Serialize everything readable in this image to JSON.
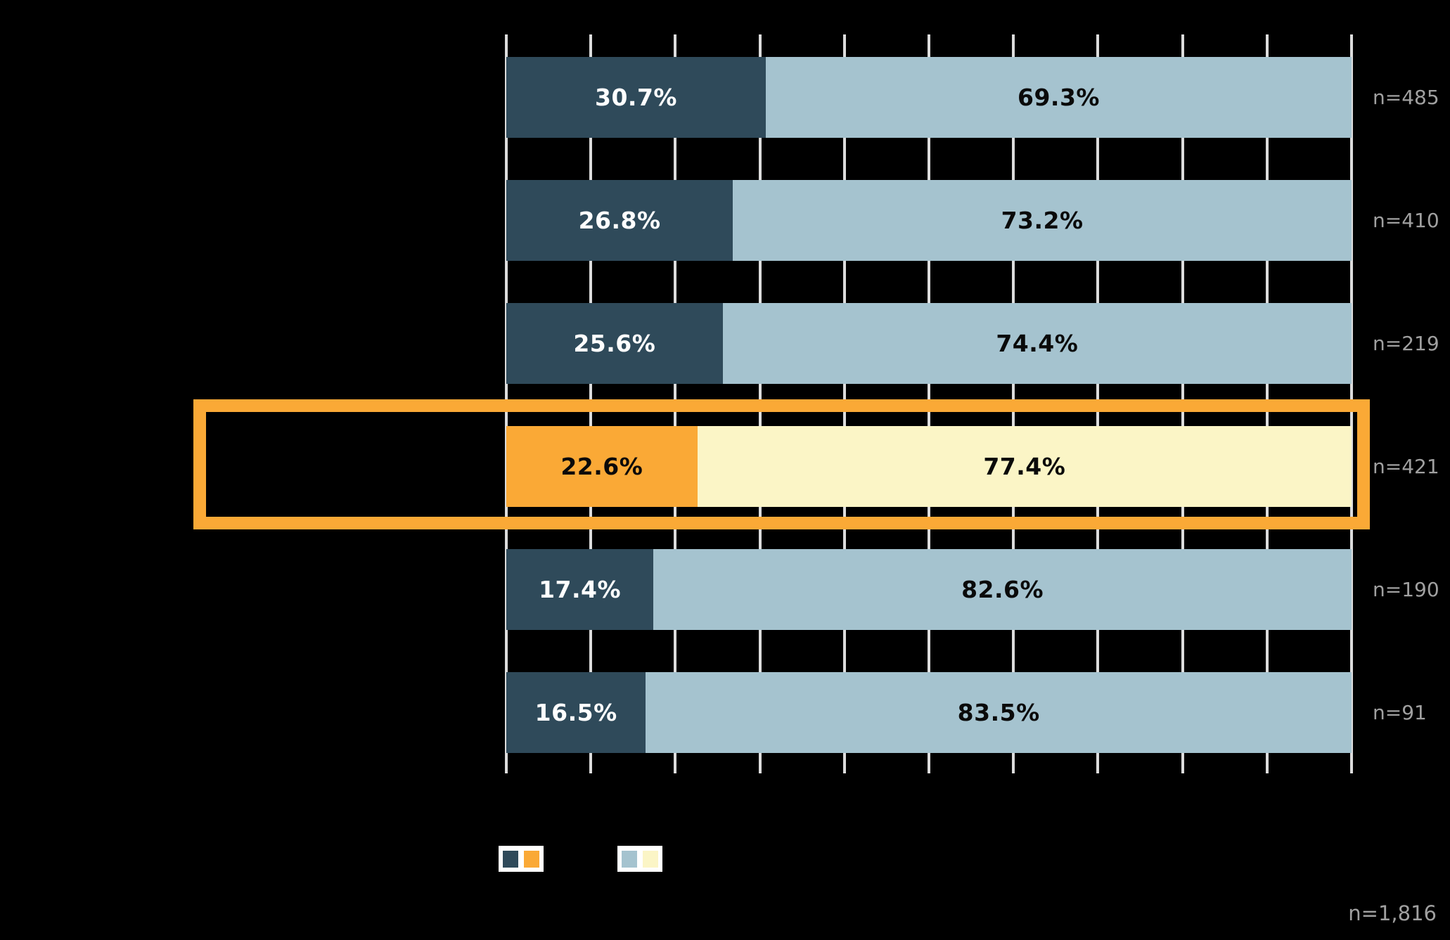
{
  "chart_data": {
    "type": "bar",
    "orientation": "horizontal",
    "stacked": true,
    "title": "",
    "xlabel": "",
    "ylabel": "",
    "x_axis": {
      "min": 0,
      "max": 100,
      "gridline_interval": 10,
      "tick_labels_visible": false,
      "grid": true
    },
    "categories": [
      "",
      "",
      "",
      "",
      "",
      ""
    ],
    "series": [
      {
        "name": "segment-1",
        "values": [
          30.7,
          26.8,
          25.6,
          22.6,
          17.4,
          16.5
        ]
      },
      {
        "name": "segment-2",
        "values": [
          69.3,
          73.2,
          74.4,
          77.4,
          82.6,
          83.5
        ]
      }
    ],
    "rows": [
      {
        "seg1_label": "30.7%",
        "seg2_label": "69.3%",
        "n_label": "n=485",
        "highlighted": false
      },
      {
        "seg1_label": "26.8%",
        "seg2_label": "73.2%",
        "n_label": "n=410",
        "highlighted": false
      },
      {
        "seg1_label": "25.6%",
        "seg2_label": "74.4%",
        "n_label": "n=219",
        "highlighted": false
      },
      {
        "seg1_label": "22.6%",
        "seg2_label": "77.4%",
        "n_label": "n=421",
        "highlighted": true
      },
      {
        "seg1_label": "17.4%",
        "seg2_label": "82.6%",
        "n_label": "n=190",
        "highlighted": false
      },
      {
        "seg1_label": "16.5%",
        "seg2_label": "83.5%",
        "n_label": "n=91",
        "highlighted": false
      }
    ],
    "total_label": "n=1,816",
    "legend": {
      "items": [
        {
          "label": "",
          "swatches": [
            "#2F4A5A",
            "#FAA936"
          ]
        },
        {
          "label": "",
          "swatches": [
            "#A5C3CF",
            "#FBF5C6"
          ]
        }
      ]
    },
    "colors": {
      "background": "#000000",
      "seg1": "#2F4A5A",
      "seg2": "#A5C3CF",
      "seg1_highlight": "#FAA936",
      "seg2_highlight": "#FBF5C6",
      "seg1_text": "#FFFFFF",
      "seg2_text": "#0A0A0A",
      "highlight_seg1_text": "#0A0A0A",
      "gridline": "#DCDCDC",
      "n_label_text": "#A0A0A0",
      "highlight_border": "#FAA936",
      "legend_chip_bg": "#FFFFFF"
    }
  }
}
